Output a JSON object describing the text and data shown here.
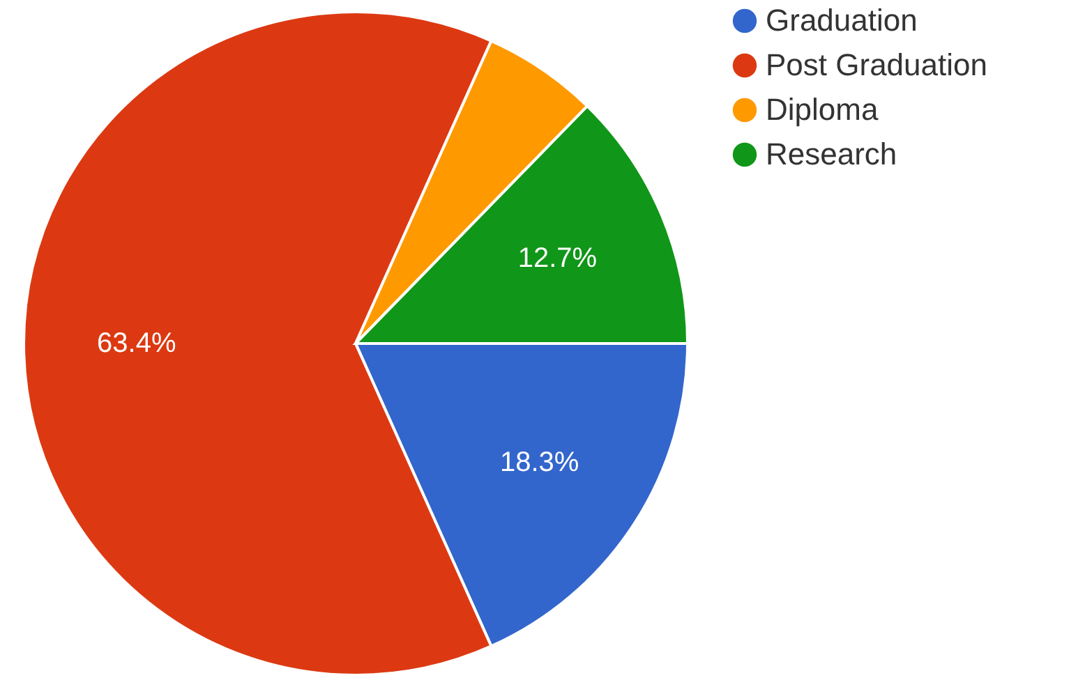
{
  "chart_data": {
    "type": "pie",
    "categories": [
      "Graduation",
      "Post Graduation",
      "Diploma",
      "Research"
    ],
    "values": [
      18.3,
      63.4,
      5.6,
      12.7
    ],
    "colors": [
      "#3366cc",
      "#dc3912",
      "#ff9900",
      "#109618"
    ],
    "value_labels": [
      "18.3%",
      "63.4%",
      null,
      "12.7%"
    ],
    "legend": "top right"
  }
}
